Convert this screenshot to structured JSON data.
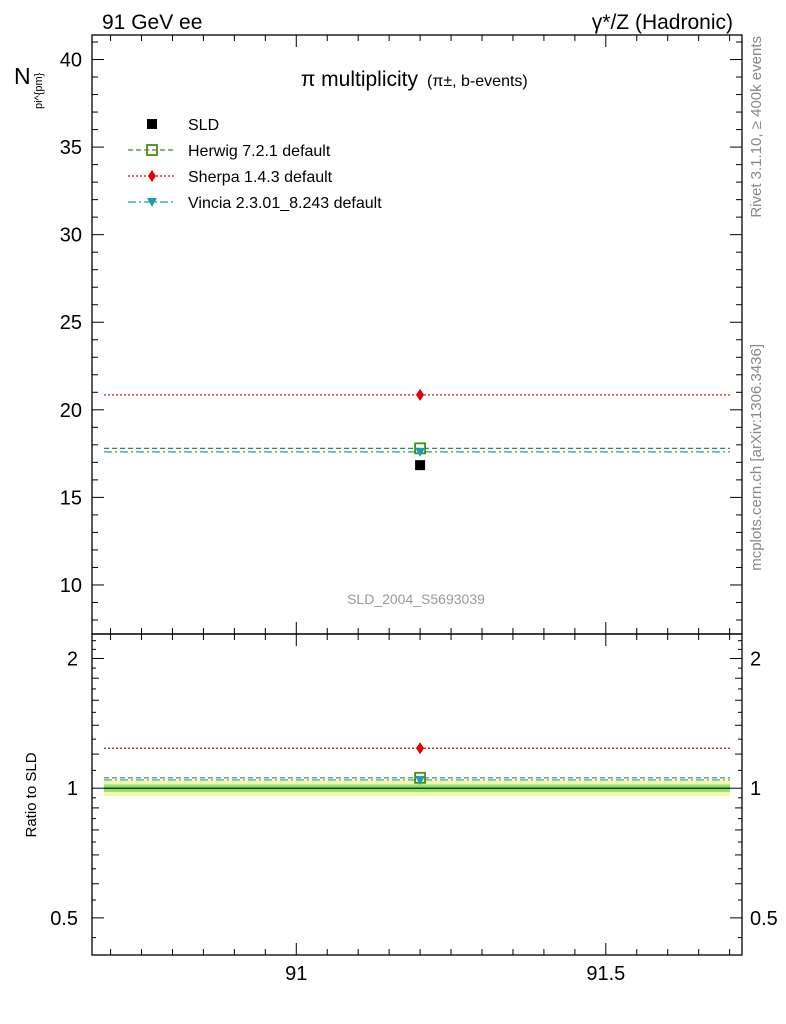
{
  "header": {
    "left": "91 GeV ee",
    "right": "γ*/Z (Hadronic)"
  },
  "side_labels": {
    "rivet": "Rivet 3.1.10, ≥ 400k events",
    "mcplots": "mcplots.cern.ch [arXiv:1306.3436]"
  },
  "chart_data": [
    {
      "type": "scatter",
      "title": "π multiplicity",
      "subtitle": "(π±, b-events)",
      "ylabel": "N",
      "ylabel_sub": "pi^{pm}",
      "watermark": "SLD_2004_S5693039",
      "xlim": [
        90.67,
        91.72
      ],
      "ylim": [
        7.2,
        41.4
      ],
      "yticks": [
        10,
        15,
        20,
        25,
        30,
        35,
        40
      ],
      "ytick_labels": [
        "10",
        "15",
        "20",
        "25",
        "30",
        "35",
        "40"
      ],
      "legend_position": "top-left",
      "series": [
        {
          "name": "SLD",
          "x": [
            91.2
          ],
          "y": [
            16.84
          ],
          "color": "#000000",
          "marker": "square-filled",
          "line": "none"
        },
        {
          "name": "Herwig 7.2.1 default",
          "x": [
            91.2
          ],
          "y": [
            17.8
          ],
          "color": "#4a8c1c",
          "marker": "square-open",
          "line": "dashed"
        },
        {
          "name": "Sherpa 1.4.3 default",
          "x": [
            91.2
          ],
          "y": [
            20.85
          ],
          "color": "#e00000",
          "marker": "diamond",
          "line": "dotted"
        },
        {
          "name": "Vincia 2.3.01_8.243 default",
          "x": [
            91.2
          ],
          "y": [
            17.6
          ],
          "color": "#1b9fb0",
          "marker": "triangle-down",
          "line": "dashdot"
        }
      ]
    },
    {
      "type": "scatter",
      "ylabel": "Ratio to SLD",
      "xlim": [
        90.67,
        91.72
      ],
      "ylim": [
        0.41,
        2.28
      ],
      "yscale": "log",
      "yticks": [
        0.5,
        1,
        2
      ],
      "ytick_labels": [
        "0.5",
        "1",
        "2"
      ],
      "xticks": [
        91,
        91.5
      ],
      "xtick_labels": [
        "91",
        "91.5"
      ],
      "band": {
        "center": 1.0,
        "inner": 0.02,
        "outer": 0.04,
        "inner_color": "#8fe36b",
        "outer_color": "#f4f7a3"
      },
      "series": [
        {
          "name": "Herwig 7.2.1 default",
          "x": [
            91.2
          ],
          "y": [
            1.057
          ],
          "color": "#4a8c1c",
          "marker": "square-open",
          "line": "dashed"
        },
        {
          "name": "Sherpa 1.4.3 default",
          "x": [
            91.2
          ],
          "y": [
            1.238
          ],
          "color": "#e00000",
          "marker": "diamond",
          "line": "dotted"
        },
        {
          "name": "Vincia 2.3.01_8.243 default",
          "x": [
            91.2
          ],
          "y": [
            1.045
          ],
          "color": "#1b9fb0",
          "marker": "triangle-down",
          "line": "dashdot"
        }
      ]
    }
  ]
}
